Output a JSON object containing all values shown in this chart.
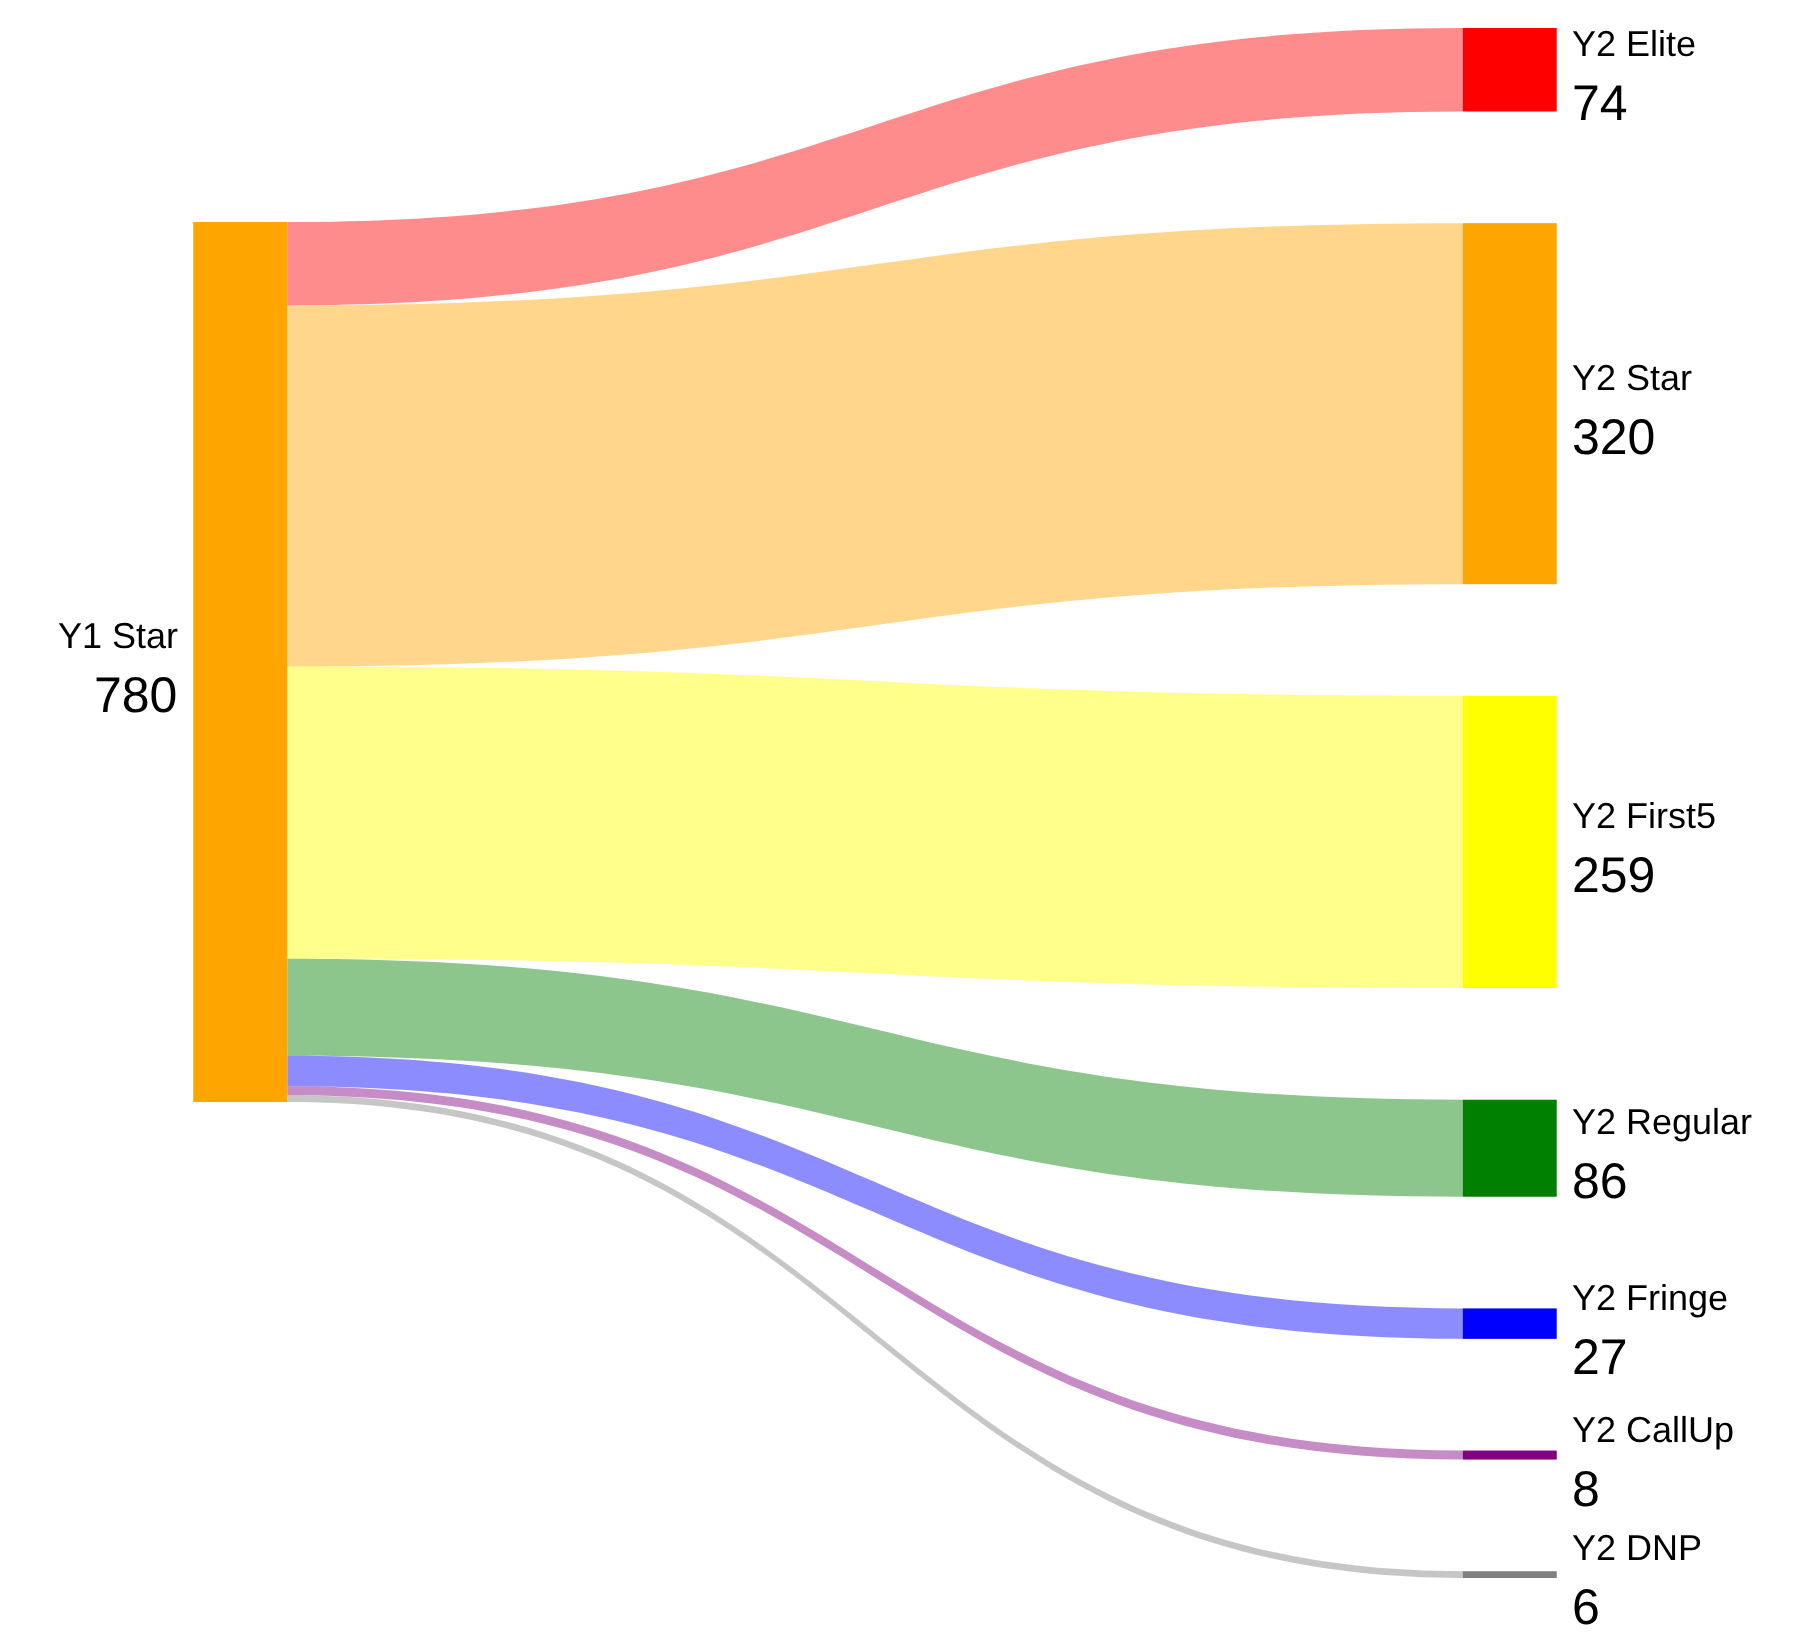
{
  "chart_data": {
    "type": "other",
    "categories": [
      "Y1 Star",
      "Y2 Elite",
      "Y2 Star",
      "Y2 First5",
      "Y2 Regular",
      "Y2 Fringe",
      "Y2 CallUp",
      "Y2 DNP"
    ],
    "values": [
      780,
      74,
      320,
      259,
      86,
      27,
      8,
      6
    ],
    "value_labels": [
      "780",
      "74",
      "320",
      "259",
      "86",
      "27",
      "8",
      "6"
    ],
    "colors": [
      "#ffa500",
      "#ff0000",
      "#ffa500",
      "#ffff00",
      "#008000",
      "#0000ff",
      "#800080",
      "#808080"
    ]
  }
}
